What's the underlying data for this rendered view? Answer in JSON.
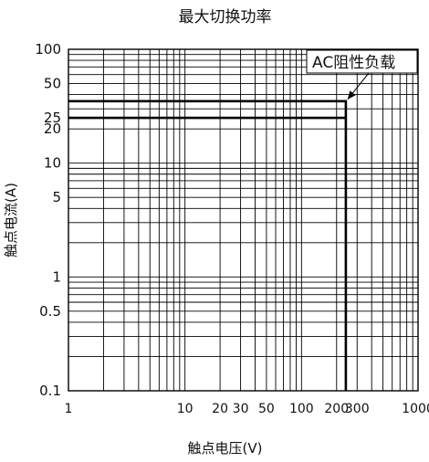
{
  "chart_data": {
    "type": "line",
    "title": "最大切换功率",
    "xlabel": "触点电压(V)",
    "ylabel": "触点电流(A)",
    "x_scale": "log",
    "y_scale": "log",
    "xlim": [
      1,
      1000
    ],
    "ylim": [
      0.1,
      100
    ],
    "grid": true,
    "x_ticks": [
      {
        "value": 1,
        "label": "1"
      },
      {
        "value": 10,
        "label": "10"
      },
      {
        "value": 20,
        "label": "20"
      },
      {
        "value": 30,
        "label": "30"
      },
      {
        "value": 50,
        "label": "50"
      },
      {
        "value": 100,
        "label": "100"
      },
      {
        "value": 200,
        "label": "200"
      },
      {
        "value": 300,
        "label": "300"
      },
      {
        "value": 1000,
        "label": "1000"
      }
    ],
    "y_ticks": [
      {
        "value": 0.1,
        "label": "0.1"
      },
      {
        "value": 0.5,
        "label": "0.5"
      },
      {
        "value": 1,
        "label": "1"
      },
      {
        "value": 5,
        "label": "5"
      },
      {
        "value": 10,
        "label": "10"
      },
      {
        "value": 20,
        "label": "20"
      },
      {
        "value": 25,
        "label": "25"
      },
      {
        "value": 50,
        "label": "50"
      },
      {
        "value": 100,
        "label": "100"
      }
    ],
    "series": [
      {
        "name": "AC阻性负载",
        "color": "#000000",
        "points": [
          [
            1,
            35
          ],
          [
            240,
            35
          ],
          [
            240,
            0.1
          ]
        ]
      },
      {
        "color": "#000000",
        "points": [
          [
            1,
            25
          ],
          [
            240,
            25
          ]
        ]
      }
    ],
    "annotations": [
      {
        "text": "AC阻性负载",
        "arrow_to": [
          240,
          35
        ]
      }
    ]
  }
}
